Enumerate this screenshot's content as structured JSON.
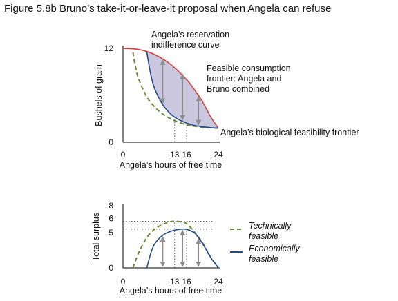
{
  "figure_title": "Figure 5.8b Bruno’s take-it-or-leave-it proposal when Angela can refuse",
  "colors": {
    "frontier": "#d9403a",
    "reservation": "#234a8a",
    "feasibility": "#6a8a3a",
    "shade": "#8a82b8",
    "arrow": "#8c8c8c",
    "axis": "#000000"
  },
  "chart_data": [
    {
      "type": "line",
      "title": "",
      "xlabel": "Angela’s hours of free time",
      "ylabel": "Bushels of grain",
      "xlim": [
        0,
        24
      ],
      "ylim": [
        0,
        12
      ],
      "xticks": [
        "0",
        "13",
        "16",
        "24"
      ],
      "xtick_values": [
        0,
        13,
        16,
        24
      ],
      "yticks": [
        "0",
        "12"
      ],
      "ytick_values": [
        0,
        12
      ],
      "series": [
        {
          "name": "Feasible consumption frontier: Angela and Bruno combined",
          "x": [
            0,
            4,
            8,
            12,
            16,
            18,
            20,
            22,
            24
          ],
          "y": [
            12,
            11.85,
            11.2,
            9.95,
            8.0,
            6.7,
            5.2,
            3.3,
            1.8
          ]
        },
        {
          "name": "Angela’s reservation indifference curve",
          "x": [
            6,
            7,
            8,
            10,
            12,
            14,
            16,
            18,
            20,
            22,
            24
          ],
          "y": [
            11.5,
            8.6,
            6.8,
            4.8,
            3.6,
            2.9,
            2.45,
            2.15,
            1.98,
            1.87,
            1.8
          ]
        },
        {
          "name": "Angela’s biological feasibility frontier",
          "x": [
            2.5,
            3,
            4,
            6,
            8,
            10,
            12,
            14,
            16,
            18,
            20,
            22,
            24
          ],
          "y": [
            11.5,
            10.0,
            8.0,
            5.8,
            4.5,
            3.6,
            3.0,
            2.55,
            2.25,
            2.05,
            1.92,
            1.84,
            1.8
          ]
        }
      ],
      "vertical_arrows": [
        {
          "x": 10,
          "y_from": 4.8,
          "y_to": 10.7
        },
        {
          "x": 15,
          "y_from": 2.65,
          "y_to": 8.9
        },
        {
          "x": 19,
          "y_from": 2.05,
          "y_to": 6.0
        }
      ],
      "dotted_guides": [
        13,
        16
      ],
      "annotations": [
        "Angela’s reservation",
        "indifference curve",
        "Feasible consumption",
        "frontier: Angela and",
        "Bruno combined",
        "Angela’s biological feasibility frontier"
      ]
    },
    {
      "type": "line",
      "title": "",
      "xlabel": "Angela’s hours of free time",
      "ylabel": "Total surplus",
      "xlim": [
        0,
        24
      ],
      "ylim": [
        0,
        8
      ],
      "xticks": [
        "0",
        "13",
        "16",
        "24"
      ],
      "xtick_values": [
        0,
        13,
        16,
        24
      ],
      "yticks": [
        "0",
        "5",
        "6",
        "8"
      ],
      "ytick_values": [
        0,
        5,
        6,
        8
      ],
      "series": [
        {
          "name": "Technically feasible",
          "x": [
            2.5,
            4,
            6,
            8,
            10,
            12,
            13,
            14,
            16,
            18,
            20,
            22,
            24
          ],
          "y": [
            0,
            2.0,
            3.9,
            5.0,
            5.6,
            5.95,
            6.0,
            5.97,
            5.7,
            4.6,
            3.25,
            1.45,
            0
          ]
        },
        {
          "name": "Economically feasible",
          "x": [
            6,
            7,
            8,
            10,
            12,
            14,
            15,
            16,
            18,
            20,
            22,
            24
          ],
          "y": [
            0,
            1.9,
            3.1,
            4.2,
            4.7,
            4.95,
            5.0,
            4.95,
            4.5,
            3.15,
            1.4,
            0
          ]
        }
      ],
      "vertical_arrows": [
        {
          "x": 10,
          "y_from": 0,
          "y_to": 4.2
        },
        {
          "x": 15,
          "y_from": 0,
          "y_to": 5.0
        },
        {
          "x": 19,
          "y_from": 0,
          "y_to": 3.9
        }
      ],
      "dotted_guides_vertical": [
        13,
        16
      ],
      "dotted_guides_horizontal": [
        6,
        5
      ],
      "legend": [
        {
          "line1": "Technically",
          "line2": "feasible",
          "series": 0
        },
        {
          "line1": "Economically",
          "line2": "feasible",
          "series": 1
        }
      ]
    }
  ]
}
